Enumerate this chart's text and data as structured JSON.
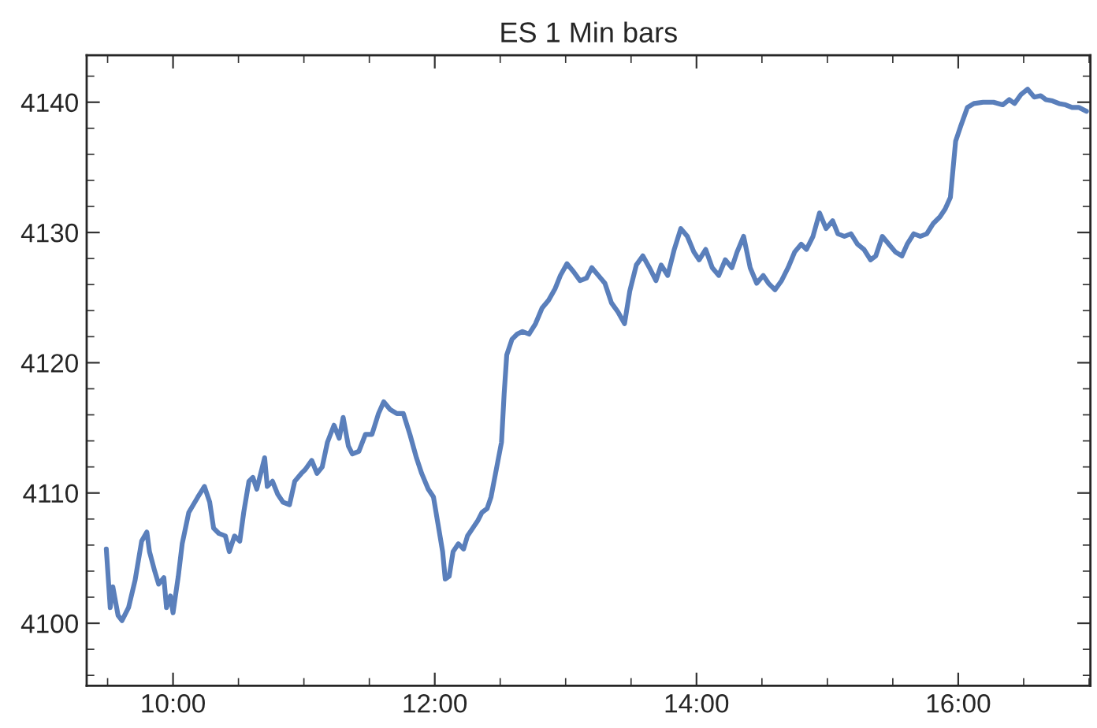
{
  "chart_data": {
    "type": "line",
    "title": "ES 1 Min bars",
    "x": [
      9.49,
      9.52,
      9.54,
      9.58,
      9.61,
      9.66,
      9.71,
      9.76,
      9.8,
      9.82,
      9.86,
      9.89,
      9.93,
      9.95,
      9.98,
      10.0,
      10.04,
      10.07,
      10.12,
      10.19,
      10.24,
      10.28,
      10.31,
      10.35,
      10.4,
      10.43,
      10.47,
      10.51,
      10.54,
      10.58,
      10.61,
      10.64,
      10.67,
      10.7,
      10.72,
      10.76,
      10.8,
      10.84,
      10.89,
      10.93,
      10.98,
      11.01,
      11.06,
      11.1,
      11.14,
      11.18,
      11.23,
      11.27,
      11.3,
      11.34,
      11.37,
      11.42,
      11.47,
      11.52,
      11.57,
      11.61,
      11.66,
      11.71,
      11.76,
      11.81,
      11.86,
      11.9,
      11.95,
      11.99,
      12.02,
      12.06,
      12.08,
      12.11,
      12.14,
      12.18,
      12.22,
      12.25,
      12.29,
      12.33,
      12.36,
      12.4,
      12.43,
      12.47,
      12.51,
      12.53,
      12.55,
      12.59,
      12.63,
      12.67,
      12.72,
      12.77,
      12.82,
      12.87,
      12.92,
      12.96,
      13.01,
      13.06,
      13.11,
      13.16,
      13.2,
      13.25,
      13.3,
      13.35,
      13.4,
      13.45,
      13.49,
      13.54,
      13.59,
      13.64,
      13.69,
      13.73,
      13.78,
      13.83,
      13.88,
      13.93,
      13.98,
      14.02,
      14.07,
      14.12,
      14.17,
      14.22,
      14.27,
      14.31,
      14.36,
      14.41,
      14.46,
      14.51,
      14.55,
      14.6,
      14.65,
      14.7,
      14.75,
      14.8,
      14.84,
      14.89,
      14.94,
      14.99,
      15.04,
      15.08,
      15.13,
      15.18,
      15.23,
      15.28,
      15.33,
      15.37,
      15.42,
      15.47,
      15.52,
      15.57,
      15.61,
      15.66,
      15.71,
      15.76,
      15.81,
      15.86,
      15.9,
      15.94,
      15.98,
      16.02,
      16.07,
      16.12,
      16.19,
      16.27,
      16.34,
      16.39,
      16.43,
      16.48,
      16.53,
      16.58,
      16.63,
      16.67,
      16.72,
      16.77,
      16.82,
      16.87,
      16.92,
      16.98
    ],
    "series": [
      {
        "color": "#5a7fbb",
        "values": [
          4105.7,
          4101.2,
          4102.8,
          4100.6,
          4100.2,
          4101.2,
          4103.3,
          4106.3,
          4107.0,
          4105.5,
          4104.0,
          4103.0,
          4103.5,
          4101.2,
          4102.1,
          4100.8,
          4103.6,
          4106.1,
          4108.5,
          4109.7,
          4110.5,
          4109.3,
          4107.3,
          4106.9,
          4106.7,
          4105.5,
          4106.7,
          4106.3,
          4108.5,
          4110.9,
          4111.2,
          4110.3,
          4111.5,
          4112.7,
          4110.5,
          4110.9,
          4109.9,
          4109.3,
          4109.1,
          4110.9,
          4111.5,
          4111.8,
          4112.5,
          4111.5,
          4112.0,
          4113.9,
          4115.2,
          4114.2,
          4115.8,
          4113.6,
          4113.0,
          4113.2,
          4114.5,
          4114.5,
          4116.1,
          4117.0,
          4116.4,
          4116.1,
          4116.1,
          4114.5,
          4112.7,
          4111.5,
          4110.3,
          4109.7,
          4107.9,
          4105.5,
          4103.4,
          4103.6,
          4105.5,
          4106.1,
          4105.7,
          4106.7,
          4107.3,
          4107.9,
          4108.5,
          4108.8,
          4109.7,
          4111.8,
          4113.9,
          4117.6,
          4120.6,
          4121.8,
          4122.2,
          4122.4,
          4122.2,
          4123.0,
          4124.2,
          4124.8,
          4125.7,
          4126.7,
          4127.6,
          4127.0,
          4126.3,
          4126.5,
          4127.3,
          4126.7,
          4126.1,
          4124.6,
          4123.9,
          4123.0,
          4125.5,
          4127.5,
          4128.2,
          4127.3,
          4126.3,
          4127.5,
          4126.7,
          4128.7,
          4130.3,
          4129.7,
          4128.5,
          4127.9,
          4128.7,
          4127.3,
          4126.7,
          4127.9,
          4127.3,
          4128.5,
          4129.7,
          4127.3,
          4126.1,
          4126.7,
          4126.1,
          4125.6,
          4126.3,
          4127.3,
          4128.5,
          4129.1,
          4128.7,
          4129.7,
          4131.5,
          4130.3,
          4130.9,
          4129.9,
          4129.7,
          4129.9,
          4129.1,
          4128.7,
          4127.9,
          4128.2,
          4129.7,
          4129.1,
          4128.5,
          4128.2,
          4129.1,
          4129.9,
          4129.7,
          4129.9,
          4130.7,
          4131.2,
          4131.8,
          4132.7,
          4137.0,
          4138.2,
          4139.6,
          4139.9,
          4140.0,
          4140.0,
          4139.8,
          4140.2,
          4139.9,
          4140.6,
          4141.0,
          4140.4,
          4140.5,
          4140.2,
          4140.1,
          4139.9,
          4139.8,
          4139.6,
          4139.6,
          4139.3
        ]
      }
    ],
    "xlim": [
      9.34,
      17.01
    ],
    "ylim": [
      4095.2,
      4143.6
    ],
    "xticks": [
      {
        "value": 9.5,
        "label": null
      },
      {
        "value": 10,
        "label": "10:00"
      },
      {
        "value": 10.5,
        "label": null
      },
      {
        "value": 11,
        "label": null
      },
      {
        "value": 11.5,
        "label": null
      },
      {
        "value": 12,
        "label": "12:00"
      },
      {
        "value": 12.5,
        "label": null
      },
      {
        "value": 13,
        "label": null
      },
      {
        "value": 13.5,
        "label": null
      },
      {
        "value": 14,
        "label": "14:00"
      },
      {
        "value": 14.5,
        "label": null
      },
      {
        "value": 15,
        "label": null
      },
      {
        "value": 15.5,
        "label": null
      },
      {
        "value": 16,
        "label": "16:00"
      },
      {
        "value": 16.5,
        "label": null
      },
      {
        "value": 17,
        "label": null
      }
    ],
    "yticks": [
      {
        "value": 4096,
        "label": null
      },
      {
        "value": 4098,
        "label": null
      },
      4100,
      {
        "value": 4102,
        "label": null
      },
      {
        "value": 4104,
        "label": null
      },
      {
        "value": 4106,
        "label": null
      },
      {
        "value": 4108,
        "label": null
      },
      4110,
      {
        "value": 4112,
        "label": null
      },
      {
        "value": 4114,
        "label": null
      },
      {
        "value": 4116,
        "label": null
      },
      {
        "value": 4118,
        "label": null
      },
      4120,
      {
        "value": 4122,
        "label": null
      },
      {
        "value": 4124,
        "label": null
      },
      {
        "value": 4126,
        "label": null
      },
      {
        "value": 4128,
        "label": null
      },
      4130,
      {
        "value": 4132,
        "label": null
      },
      {
        "value": 4134,
        "label": null
      },
      {
        "value": 4136,
        "label": null
      },
      {
        "value": 4138,
        "label": null
      },
      4140,
      {
        "value": 4142,
        "label": null
      }
    ],
    "grid": false,
    "legend": false,
    "marker": "none",
    "line_style": "solid"
  }
}
